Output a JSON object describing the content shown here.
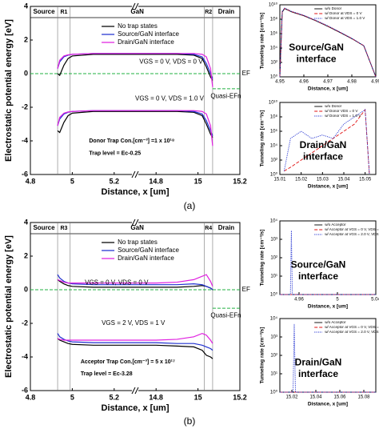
{
  "chart_data": [
    {
      "type": "line",
      "ylabel": "Electrostatic potential energy [eV]",
      "xlabel": "Distance, x [um]",
      "broken_x": true,
      "xlim": [
        4.8,
        15.2
      ],
      "xticks": [
        4.8,
        5.0,
        5.2,
        14.8,
        15.0,
        15.2
      ],
      "ylim": [
        -6,
        4
      ],
      "yticks": [
        -6,
        -4,
        -2,
        0,
        2,
        4
      ],
      "region_labels": [
        "Source",
        "R1",
        "GaN",
        "R2",
        "Drain"
      ],
      "region_bounds": [
        4.93,
        4.99,
        15.03,
        15.07
      ],
      "fermi_level": 0,
      "quasi_level": -0.9,
      "annotations": [
        "VGS = 0 V, VDS = 0 V",
        "VGS = 0 V, VDS = 1.0 V",
        "EF",
        "Quasi-EFn",
        "Donor Trap Con.[cm⁻³] =1 x 10¹⁸",
        "Trap level = Ec-0.25"
      ],
      "x": [
        4.93,
        4.94,
        4.96,
        4.98,
        5.0,
        5.1,
        5.2,
        14.8,
        14.9,
        14.98,
        15.02,
        15.04,
        15.06,
        15.07
      ],
      "series": [
        {
          "name": "No trap states",
          "color": "#000000",
          "style": "solid",
          "conduction": [
            0.0,
            -0.1,
            0.5,
            0.9,
            1.05,
            1.15,
            1.15,
            1.15,
            1.15,
            1.1,
            0.9,
            0.4,
            -0.2,
            -0.4
          ],
          "valence": [
            -3.4,
            -3.5,
            -2.9,
            -2.5,
            -2.35,
            -2.25,
            -2.25,
            -2.25,
            -2.25,
            -2.3,
            -2.5,
            -3.0,
            -3.6,
            -3.8
          ]
        },
        {
          "name": "Source/GaN interface",
          "color": "#2030d0",
          "style": "solid",
          "conduction": [
            0.3,
            0.7,
            1.0,
            1.1,
            1.15,
            1.2,
            1.2,
            1.2,
            1.2,
            1.15,
            1.0,
            0.6,
            0.0,
            -0.3
          ],
          "valence": [
            -3.1,
            -2.7,
            -2.4,
            -2.3,
            -2.25,
            -2.2,
            -2.2,
            -2.2,
            -2.2,
            -2.25,
            -2.4,
            -2.8,
            -3.4,
            -3.7
          ]
        },
        {
          "name": "Drain/GaN interface",
          "color": "#e020e0",
          "style": "solid",
          "conduction": [
            0.3,
            0.8,
            1.05,
            1.12,
            1.15,
            1.2,
            1.2,
            1.2,
            1.2,
            1.2,
            1.15,
            1.0,
            0.3,
            -0.8
          ],
          "valence": [
            -3.1,
            -2.6,
            -2.35,
            -2.28,
            -2.25,
            -2.2,
            -2.2,
            -2.2,
            -2.2,
            -2.2,
            -2.25,
            -2.4,
            -3.1,
            -4.3
          ]
        }
      ]
    },
    {
      "type": "line",
      "log_y": true,
      "ylabel": "Tunneling rate [cm⁻³/s]",
      "xlabel": "Distance, x [um]",
      "xlim": [
        4.95,
        4.99
      ],
      "xticks": [
        4.95,
        4.96,
        4.97,
        4.98,
        4.99
      ],
      "ylim": [
        1,
        10000000000
      ],
      "yticks": [
        {
          "value": 1,
          "label": "10⁰"
        },
        {
          "value": 100,
          "label": "10²"
        },
        {
          "value": 10000,
          "label": "10⁴"
        },
        {
          "value": 1000000,
          "label": "10⁶"
        },
        {
          "value": 100000000,
          "label": "10⁸"
        },
        {
          "value": 10000000000,
          "label": "10¹⁰"
        }
      ],
      "annotations": [
        "Source/GaN",
        "interface"
      ],
      "x": [
        4.95,
        4.951,
        4.952,
        4.955,
        4.96,
        4.965,
        4.97,
        4.975,
        4.98,
        4.985,
        4.99
      ],
      "series": [
        {
          "name": "w/o Donor",
          "color": "#000000",
          "style": "solid",
          "values": [
            1,
            1000000000,
            3000000000,
            1000000000,
            300000000,
            60000000,
            10000000,
            1500000,
            200000,
            20000,
            1
          ]
        },
        {
          "name": "w/ Donor at VDS = 0 V",
          "color": "#e01010",
          "style": "dashed",
          "values": [
            1,
            1200000000,
            3200000000,
            1100000000,
            320000000,
            65000000,
            11000000,
            1600000,
            210000,
            21000,
            1
          ]
        },
        {
          "name": "w/ Donor at VDS = 1.0 V",
          "color": "#2030d0",
          "style": "dotted",
          "values": [
            1,
            1300000000,
            3500000000,
            1200000000,
            350000000,
            70000000,
            12000000,
            1700000,
            220000,
            22000,
            1
          ]
        }
      ]
    },
    {
      "type": "line",
      "log_y": true,
      "ylabel": "Tunneling rate [cm⁻³/s]",
      "xlabel": "Distance, x [um]",
      "xlim": [
        15.01,
        15.055
      ],
      "xticks": [
        15.01,
        15.02,
        15.03,
        15.04,
        15.05
      ],
      "ylim": [
        1,
        10000000000
      ],
      "yticks": [
        {
          "value": 1,
          "label": "10⁰"
        },
        {
          "value": 100,
          "label": "10²"
        },
        {
          "value": 10000,
          "label": "10⁴"
        },
        {
          "value": 1000000,
          "label": "10⁶"
        },
        {
          "value": 100000000,
          "label": "10⁸"
        },
        {
          "value": 10000000000,
          "label": "10¹⁰"
        }
      ],
      "annotations": [
        "Drain/GaN",
        "interface"
      ],
      "x": [
        15.01,
        15.012,
        15.015,
        15.02,
        15.025,
        15.03,
        15.035,
        15.04,
        15.045,
        15.05,
        15.052
      ],
      "series": [
        {
          "name": "w/o Donor",
          "color": "#000000",
          "style": "solid",
          "values": [
            1,
            1,
            1,
            1,
            1,
            1,
            1,
            1,
            1,
            1,
            1
          ]
        },
        {
          "name": "w/ Donor VDS = 0 V",
          "color": "#e01010",
          "style": "dashed",
          "values": [
            null,
            3,
            10,
            100,
            1000,
            10000,
            100000,
            1000000,
            10000000,
            1000000000,
            1
          ]
        },
        {
          "name": "w/ Donor VDS = 1.0 V",
          "color": "#2030d0",
          "style": "dotted",
          "values": [
            null,
            3,
            100000,
            1000000,
            100000,
            300000,
            100000,
            10000000,
            100000000,
            1000000000,
            1
          ]
        }
      ]
    },
    {
      "type": "line",
      "ylabel": "Electrostatic potential energy [eV]",
      "xlabel": "Distance, x [um]",
      "broken_x": true,
      "xlim": [
        4.8,
        15.2
      ],
      "xticks": [
        4.8,
        5.0,
        5.2,
        14.8,
        15.0,
        15.2
      ],
      "ylim": [
        -6,
        4
      ],
      "yticks": [
        -6,
        -4,
        -2,
        0,
        2,
        4
      ],
      "region_labels": [
        "Source",
        "R3",
        "GaN",
        "R4",
        "Drain"
      ],
      "region_bounds": [
        4.93,
        4.99,
        15.03,
        15.07
      ],
      "fermi_level": 0,
      "quasi_level": -1.1,
      "annotations": [
        "VGS = 0 V, VDS = 0 V",
        "VGS = 2 V, VDS = 1 V",
        "EF",
        "Quasi-EFn",
        "Acceptor Trap Con.[cm⁻³] = 5 x 10¹⁷",
        "Trap level = Ec-3.28"
      ],
      "x": [
        4.93,
        4.94,
        4.96,
        4.98,
        5.0,
        5.1,
        5.2,
        14.8,
        14.9,
        14.98,
        15.02,
        15.04,
        15.06,
        15.07
      ],
      "series": [
        {
          "name": "No trap states",
          "color": "#000000",
          "style": "solid",
          "conduction": [
            0.6,
            0.5,
            0.35,
            0.25,
            0.2,
            0.15,
            0.15,
            0.15,
            0.15,
            0.2,
            0.25,
            0.2,
            0.1,
            0.0
          ],
          "valence": [
            -2.9,
            -3.0,
            -3.1,
            -3.2,
            -3.25,
            -3.3,
            -3.3,
            -3.3,
            -3.35,
            -3.4,
            -3.6,
            -3.9,
            -4.0,
            -4.1
          ]
        },
        {
          "name": "Source/GaN interface",
          "color": "#2030d0",
          "style": "solid",
          "conduction": [
            0.9,
            0.7,
            0.5,
            0.4,
            0.35,
            0.3,
            0.3,
            0.3,
            0.3,
            0.35,
            0.3,
            0.2,
            0.1,
            0.0
          ],
          "valence": [
            -2.6,
            -2.8,
            -2.95,
            -3.05,
            -3.1,
            -3.15,
            -3.15,
            -3.15,
            -3.2,
            -3.2,
            -3.3,
            -3.4,
            -3.5,
            -3.6
          ]
        },
        {
          "name": "Drain/GaN interface",
          "color": "#e020e0",
          "style": "solid",
          "conduction": [
            0.6,
            0.55,
            0.45,
            0.4,
            0.4,
            0.4,
            0.4,
            0.4,
            0.45,
            0.6,
            0.8,
            0.9,
            0.5,
            0.2
          ],
          "valence": [
            -2.9,
            -2.95,
            -3.0,
            -3.0,
            -3.0,
            -3.0,
            -3.0,
            -3.0,
            -2.95,
            -2.8,
            -2.6,
            -2.7,
            -3.0,
            -3.2
          ]
        }
      ]
    },
    {
      "type": "line",
      "log_y": true,
      "ylabel": "Tunneling rate [cm⁻³/s]",
      "xlabel": "Distance, x [um]",
      "xlim": [
        4.94,
        5.04
      ],
      "xticks": [
        4.96,
        5.0,
        5.04
      ],
      "ylim": [
        1,
        10000
      ],
      "yticks": [
        {
          "value": 1,
          "label": "10⁰"
        },
        {
          "value": 10,
          "label": "10¹"
        },
        {
          "value": 100,
          "label": "10²"
        },
        {
          "value": 1000,
          "label": "10³"
        },
        {
          "value": 10000,
          "label": "10⁴"
        }
      ],
      "annotations": [
        "Source/GaN",
        "interface"
      ],
      "x": [
        4.94,
        4.951,
        4.952,
        4.953,
        4.96,
        5.04
      ],
      "series": [
        {
          "name": "w/o Acceptor",
          "color": "#000000",
          "style": "solid",
          "values": [
            1,
            1,
            1,
            1,
            1,
            1
          ]
        },
        {
          "name": "w/ Acceptor at VGS = 0 V, VDS = 0 V",
          "color": "#e01010",
          "style": "dashed",
          "values": [
            1,
            1,
            1,
            1,
            1,
            1
          ]
        },
        {
          "name": "w/ Acceptor at VGS = 2.0 V, VDS = 1.0 V",
          "color": "#2030d0",
          "style": "dotted",
          "values": [
            1,
            1,
            3000,
            1,
            1,
            1
          ]
        }
      ]
    },
    {
      "type": "line",
      "log_y": true,
      "ylabel": "Tunneling rate [cm⁻³/s]",
      "xlabel": "Distance, x [um]",
      "xlim": [
        15.01,
        15.09
      ],
      "xticks": [
        15.02,
        15.04,
        15.06,
        15.08
      ],
      "ylim": [
        1,
        10000
      ],
      "yticks": [
        {
          "value": 1,
          "label": "10⁰"
        },
        {
          "value": 10,
          "label": "10¹"
        },
        {
          "value": 100,
          "label": "10²"
        },
        {
          "value": 1000,
          "label": "10³"
        },
        {
          "value": 10000,
          "label": "10⁴"
        }
      ],
      "annotations": [
        "Drain/GaN",
        "interface"
      ],
      "x": [
        15.01,
        15.021,
        15.022,
        15.023,
        15.03,
        15.09
      ],
      "series": [
        {
          "name": "w/o Acceptor",
          "color": "#000000",
          "style": "solid",
          "values": [
            1,
            1,
            1,
            1,
            1,
            1
          ]
        },
        {
          "name": "w/ Acceptor at VGS = 0 V, VDS = 0 V",
          "color": "#e01010",
          "style": "dashed",
          "values": [
            1,
            1,
            1,
            1,
            1,
            1
          ]
        },
        {
          "name": "w/ Acceptor at VGS = 2.0 V, VDS = 1.0 V",
          "color": "#2030d0",
          "style": "dotted",
          "values": [
            1,
            1,
            5000,
            1,
            1,
            1
          ]
        }
      ]
    }
  ],
  "panel_labels": [
    "(a)",
    "(b)"
  ]
}
